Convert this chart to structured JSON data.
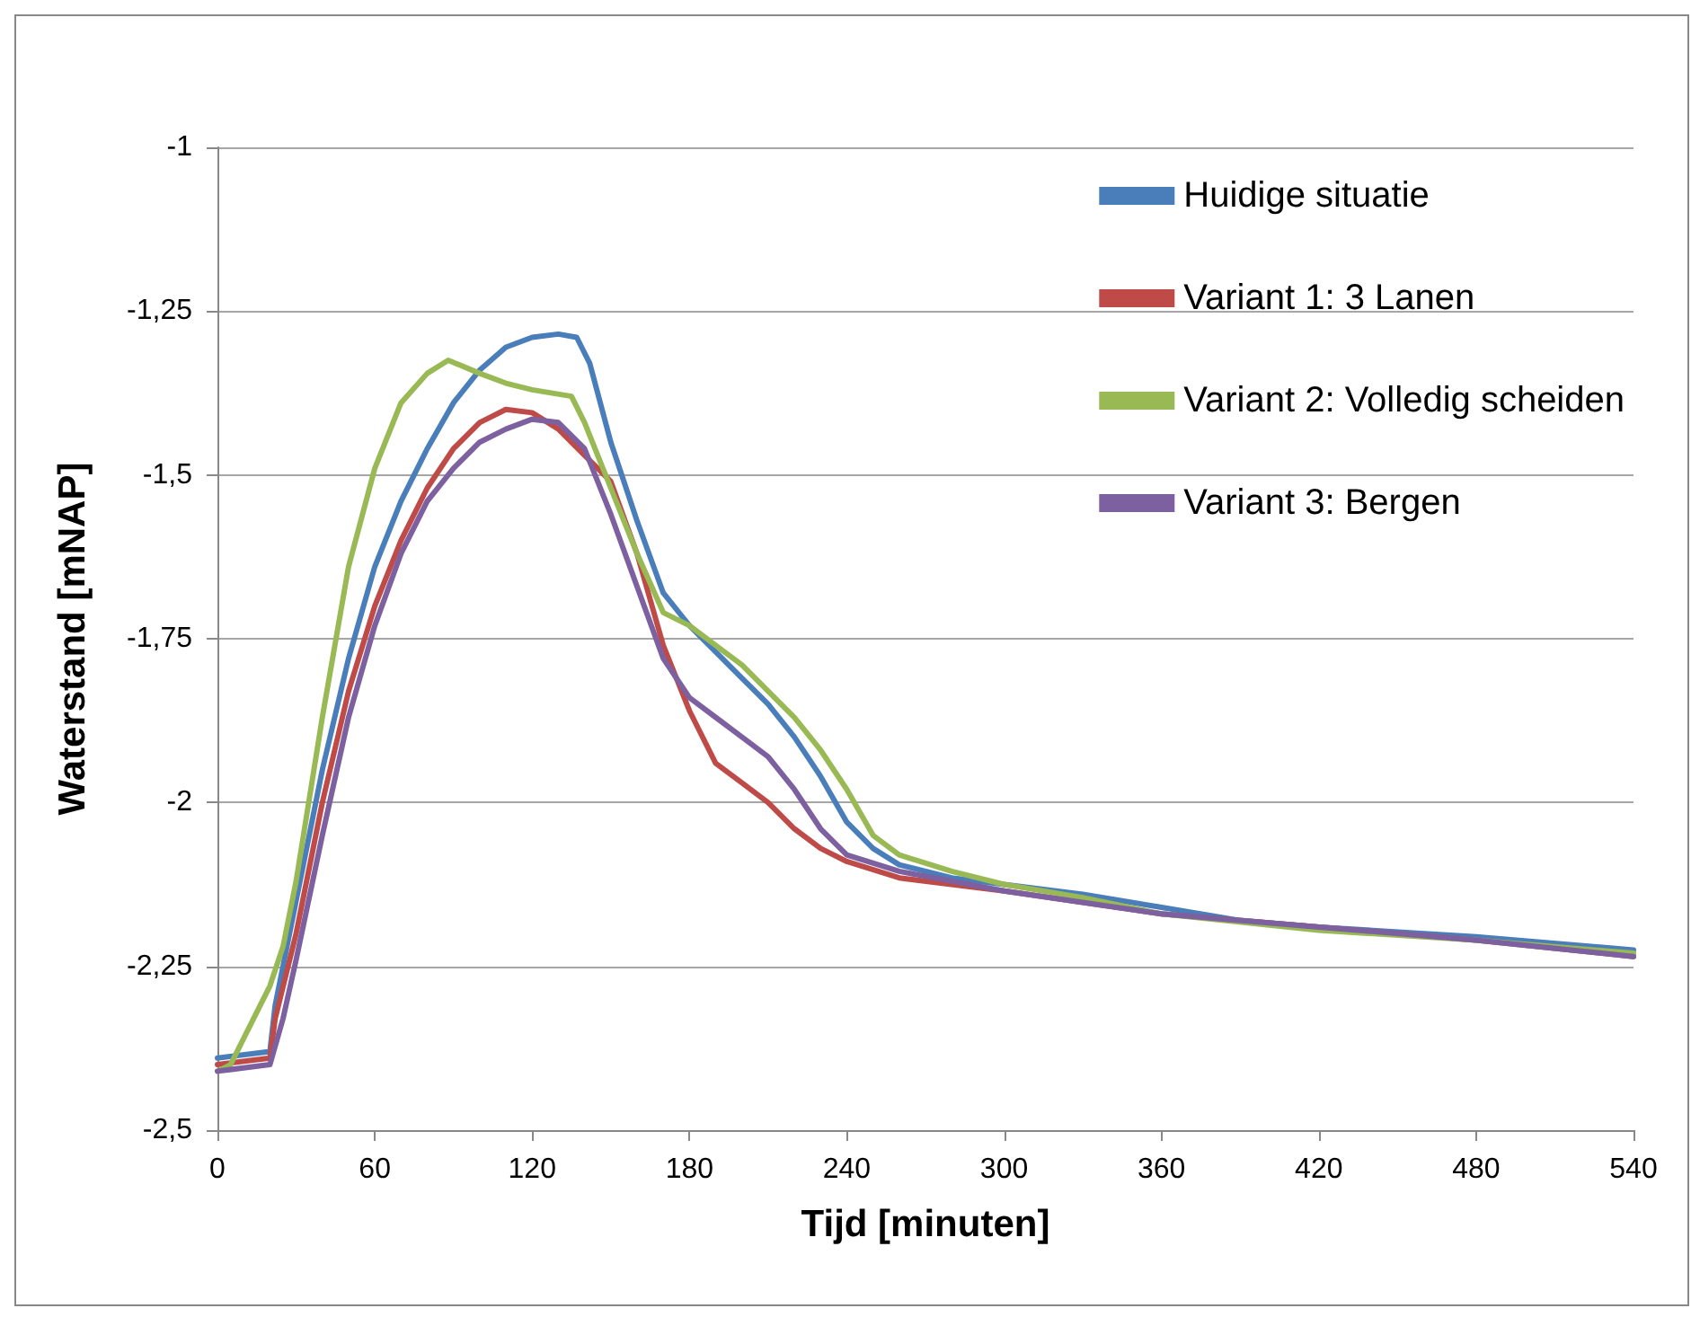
{
  "chart_data": {
    "type": "line",
    "xlabel": "Tijd [minuten]",
    "ylabel": "Waterstand [mNAP]",
    "xlim": [
      0,
      540
    ],
    "xticks": [
      0,
      60,
      120,
      180,
      240,
      300,
      360,
      420,
      480,
      540
    ],
    "ylim": [
      -2.5,
      -1
    ],
    "yticks": [
      {
        "value": -2.5,
        "label": "-2,5"
      },
      {
        "value": -2.25,
        "label": "-2,25"
      },
      {
        "value": -2,
        "label": "-2"
      },
      {
        "value": -1.75,
        "label": "-1,75"
      },
      {
        "value": -1.5,
        "label": "-1,5"
      },
      {
        "value": -1.25,
        "label": "-1,25"
      },
      {
        "value": -1,
        "label": "-1"
      }
    ],
    "grid": "y",
    "legend": "top right",
    "marker": "none",
    "line_style": "solid",
    "series": [
      {
        "name": "Huidige situatie",
        "color": "#4a7ebb",
        "x": [
          0,
          20,
          22,
          30,
          40,
          50,
          60,
          70,
          80,
          90,
          100,
          110,
          120,
          130,
          137,
          142,
          150,
          160,
          170,
          180,
          190,
          200,
          210,
          220,
          230,
          240,
          250,
          260,
          280,
          300,
          330,
          360,
          390,
          420,
          480,
          540
        ],
        "values": [
          -2.39,
          -2.38,
          -2.31,
          -2.15,
          -1.95,
          -1.78,
          -1.64,
          -1.54,
          -1.46,
          -1.39,
          -1.34,
          -1.305,
          -1.29,
          -1.285,
          -1.29,
          -1.33,
          -1.45,
          -1.57,
          -1.68,
          -1.73,
          -1.77,
          -1.81,
          -1.85,
          -1.9,
          -1.96,
          -2.03,
          -2.07,
          -2.095,
          -2.115,
          -2.125,
          -2.14,
          -2.16,
          -2.18,
          -2.19,
          -2.205,
          -2.225
        ]
      },
      {
        "name": "Variant 1: 3 Lanen",
        "color": "#be4b48",
        "x": [
          0,
          20,
          22,
          30,
          40,
          50,
          60,
          70,
          80,
          90,
          100,
          110,
          120,
          130,
          140,
          150,
          160,
          170,
          180,
          190,
          200,
          210,
          220,
          230,
          240,
          260,
          300,
          360,
          420,
          480,
          540
        ],
        "values": [
          -2.4,
          -2.39,
          -2.33,
          -2.2,
          -2,
          -1.83,
          -1.7,
          -1.6,
          -1.52,
          -1.46,
          -1.42,
          -1.4,
          -1.405,
          -1.43,
          -1.47,
          -1.51,
          -1.62,
          -1.76,
          -1.86,
          -1.94,
          -1.97,
          -2,
          -2.04,
          -2.07,
          -2.09,
          -2.115,
          -2.135,
          -2.17,
          -2.19,
          -2.21,
          -2.235
        ]
      },
      {
        "name": "Variant 2: Volledig scheiden",
        "color": "#98b954",
        "x": [
          0,
          5,
          10,
          20,
          25,
          30,
          40,
          50,
          60,
          70,
          80,
          88,
          100,
          110,
          120,
          135,
          140,
          150,
          160,
          170,
          180,
          190,
          200,
          210,
          220,
          230,
          240,
          250,
          260,
          280,
          300,
          330,
          360,
          420,
          480,
          540
        ],
        "values": [
          -2.41,
          -2.4,
          -2.36,
          -2.28,
          -2.22,
          -2.12,
          -1.87,
          -1.64,
          -1.49,
          -1.39,
          -1.345,
          -1.325,
          -1.345,
          -1.36,
          -1.37,
          -1.38,
          -1.42,
          -1.52,
          -1.62,
          -1.71,
          -1.73,
          -1.76,
          -1.79,
          -1.83,
          -1.87,
          -1.92,
          -1.98,
          -2.05,
          -2.08,
          -2.105,
          -2.125,
          -2.145,
          -2.17,
          -2.195,
          -2.21,
          -2.23
        ]
      },
      {
        "name": "Variant 3: Bergen",
        "color": "#7d60a0",
        "x": [
          0,
          20,
          25,
          30,
          40,
          50,
          60,
          70,
          80,
          90,
          100,
          110,
          120,
          130,
          140,
          150,
          160,
          170,
          180,
          190,
          200,
          210,
          220,
          230,
          240,
          260,
          300,
          360,
          420,
          480,
          540
        ],
        "values": [
          -2.41,
          -2.4,
          -2.33,
          -2.24,
          -2.05,
          -1.87,
          -1.73,
          -1.62,
          -1.54,
          -1.49,
          -1.45,
          -1.43,
          -1.415,
          -1.42,
          -1.46,
          -1.56,
          -1.67,
          -1.78,
          -1.84,
          -1.87,
          -1.9,
          -1.93,
          -1.98,
          -2.04,
          -2.08,
          -2.105,
          -2.135,
          -2.17,
          -2.19,
          -2.21,
          -2.235
        ]
      }
    ]
  }
}
